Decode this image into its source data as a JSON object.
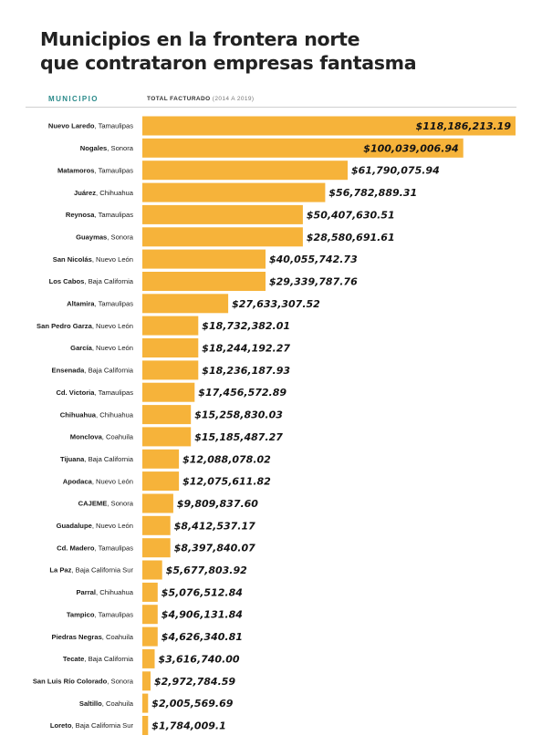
{
  "page": {
    "title_line1": "Municipios en la frontera norte",
    "title_line2": "que contrataron empresas fantasma",
    "col_municipio": "MUNICIPIO",
    "col_total": "TOTAL FACTURADO",
    "col_years": "(2014 A 2019)"
  },
  "colors": {
    "bar": "#F6B33A",
    "header_accent": "#2A8A8A",
    "text": "#1A1A1A"
  },
  "chart_data": {
    "type": "bar",
    "orientation": "horizontal",
    "title": "Municipios en la frontera norte que contrataron empresas fantasma",
    "xlabel": "TOTAL FACTURADO (2014 A 2019)",
    "ylabel": "MUNICIPIO",
    "grid": false,
    "legend": "none",
    "categories": [
      {
        "name": "Nuevo Laredo",
        "state": "Tamaulipas"
      },
      {
        "name": "Nogales",
        "state": "Sonora"
      },
      {
        "name": "Matamoros",
        "state": "Tamaulipas"
      },
      {
        "name": "Juárez",
        "state": "Chihuahua"
      },
      {
        "name": "Reynosa",
        "state": "Tamaulipas"
      },
      {
        "name": "Guaymas",
        "state": "Sonora"
      },
      {
        "name": "San Nicolás",
        "state": "Nuevo León"
      },
      {
        "name": "Los Cabos",
        "state": "Baja California"
      },
      {
        "name": "Altamira",
        "state": "Tamaulipas"
      },
      {
        "name": "San Pedro Garza",
        "state": "Nuevo León"
      },
      {
        "name": "García",
        "state": "Nuevo León"
      },
      {
        "name": "Ensenada",
        "state": "Baja California"
      },
      {
        "name": "Cd. Victoria",
        "state": "Tamaulipas"
      },
      {
        "name": "Chihuahua",
        "state": "Chihuahua"
      },
      {
        "name": "Monclova",
        "state": "Coahuila"
      },
      {
        "name": "Tijuana",
        "state": "Baja California"
      },
      {
        "name": "Apodaca",
        "state": "Nuevo León"
      },
      {
        "name": "CAJEME",
        "state": "Sonora"
      },
      {
        "name": "Guadalupe",
        "state": "Nuevo León"
      },
      {
        "name": "Cd. Madero",
        "state": "Tamaulipas"
      },
      {
        "name": "La Paz",
        "state": "Baja California Sur"
      },
      {
        "name": "Parral",
        "state": "Chihuahua"
      },
      {
        "name": "Tampico",
        "state": "Tamaulipas"
      },
      {
        "name": "Piedras Negras",
        "state": "Coahuila"
      },
      {
        "name": "Tecate",
        "state": "Baja California"
      },
      {
        "name": "San Luis Río Colorado",
        "state": "Sonora"
      },
      {
        "name": "Saltillo",
        "state": "Coahuila"
      },
      {
        "name": "Loreto",
        "state": "Baja California Sur"
      }
    ],
    "values": [
      118186213.19,
      100039006.94,
      61790075.94,
      56782889.31,
      50407630.51,
      28580691.61,
      40055742.73,
      29339787.76,
      27633307.52,
      18732382.01,
      18244192.27,
      18236187.93,
      17456572.89,
      15258830.03,
      15185487.27,
      12088078.02,
      12075611.82,
      9809837.6,
      8412537.17,
      8397840.07,
      5677803.92,
      5076512.84,
      4906131.84,
      4626340.81,
      3616740.0,
      2972784.59,
      2005569.69,
      1784009.1
    ],
    "value_labels": [
      "$118,186,213.19",
      "$100,039,006.94",
      "$61,790,075.94",
      "$56,782,889.31",
      "$50,407,630.51",
      "$28,580,691.61",
      "$40,055,742.73",
      "$29,339,787.76",
      "$27,633,307.52",
      "$18,732,382.01",
      "$18,244,192.27",
      "$18,236,187.93",
      "$17,456,572.89",
      "$15,258,830.03",
      "$15,185,487.27",
      "$12,088,078.02",
      "$12,075,611.82",
      "$9,809,837.60",
      "$8,412,537.17",
      "$8,397,840.07",
      "$5,677,803.92",
      "$5,076,512.84",
      "$4,906,131.84",
      "$4,626,340.81",
      "$3,616,740.00",
      "$2,972,784.59",
      "$2,005,569.69",
      "$1,784,009.1"
    ],
    "label_position": [
      "inside",
      "inside",
      "outside",
      "outside",
      "outside",
      "outside",
      "outside",
      "outside",
      "outside",
      "outside",
      "outside",
      "outside",
      "outside",
      "outside",
      "outside",
      "outside",
      "outside",
      "outside",
      "outside",
      "outside",
      "outside",
      "outside",
      "outside",
      "outside",
      "outside",
      "outside",
      "outside",
      "outside"
    ],
    "bar_levels": [
      1.0,
      0.86,
      0.55,
      0.49,
      0.43,
      0.43,
      0.33,
      0.33,
      0.23,
      0.15,
      0.15,
      0.15,
      0.14,
      0.13,
      0.13,
      0.098,
      0.098,
      0.083,
      0.075,
      0.075,
      0.053,
      0.041,
      0.041,
      0.041,
      0.033,
      0.022,
      0.0153,
      0.0153
    ]
  }
}
